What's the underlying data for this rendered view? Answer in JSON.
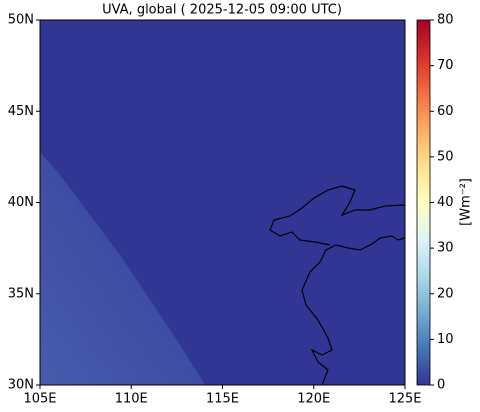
{
  "chart_data": {
    "type": "map",
    "title": "UVA, global ( 2025-12-05 09:00 UTC)",
    "xlim": [
      105,
      125
    ],
    "xticks": [
      {
        "value": 105,
        "label": "105E"
      },
      {
        "value": 110,
        "label": "110E"
      },
      {
        "value": 115,
        "label": "115E"
      },
      {
        "value": 120,
        "label": "120E"
      },
      {
        "value": 125,
        "label": "125E"
      }
    ],
    "ylim": [
      30,
      50
    ],
    "yticks": [
      {
        "value": 30,
        "label": "30N"
      },
      {
        "value": 35,
        "label": "35N"
      },
      {
        "value": 40,
        "label": "40N"
      },
      {
        "value": 45,
        "label": "45N"
      },
      {
        "value": 50,
        "label": "50N"
      }
    ],
    "colorbar": {
      "label": "[Wm⁻²]",
      "lim": [
        0,
        80
      ],
      "ticks": [
        0,
        10,
        20,
        30,
        40,
        50,
        60,
        70,
        80
      ],
      "colors": [
        "#313695",
        "#4575b4",
        "#74add1",
        "#abd9e9",
        "#e0f3f8",
        "#ffffbf",
        "#fee090",
        "#fdae61",
        "#f46d43",
        "#d73027",
        "#a50026"
      ]
    }
  }
}
